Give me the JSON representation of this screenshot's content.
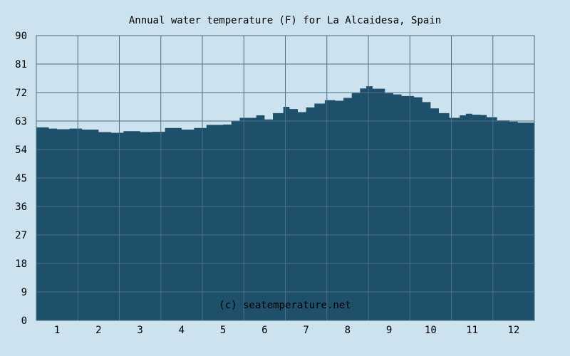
{
  "chart_data": {
    "type": "area",
    "title": "Annual water temperature (F) for La Alcaidesa, Spain",
    "xlabel": "",
    "ylabel": "",
    "x_ticks": [
      "1",
      "2",
      "3",
      "4",
      "5",
      "6",
      "7",
      "8",
      "9",
      "10",
      "11",
      "12"
    ],
    "y_ticks": [
      "0",
      "9",
      "18",
      "27",
      "36",
      "45",
      "54",
      "63",
      "72",
      "81",
      "90"
    ],
    "xlim": [
      0.5,
      12.5
    ],
    "ylim": [
      0,
      90
    ],
    "grid": true,
    "legend": "none",
    "watermark": "(c) seatemperature.net",
    "series": [
      {
        "x": [
          0.5,
          0.8,
          1.0,
          1.3,
          1.6,
          2.0,
          2.3,
          2.6,
          3.0,
          3.3,
          3.6,
          4.0,
          4.3,
          4.6,
          5.0,
          5.2,
          5.4,
          5.8,
          6.0,
          6.2,
          6.45,
          6.6,
          6.8,
          7.0,
          7.2,
          7.45,
          7.7,
          7.9,
          8.1,
          8.3,
          8.45,
          8.6,
          8.9,
          9.1,
          9.3,
          9.6,
          9.8,
          10.0,
          10.2,
          10.45,
          10.7,
          10.85,
          11.0,
          11.2,
          11.35,
          11.6,
          11.9,
          12.1,
          12.5
        ],
        "values": [
          61.0,
          60.6,
          60.4,
          60.6,
          60.3,
          59.5,
          59.3,
          59.8,
          59.5,
          59.6,
          60.8,
          60.3,
          60.8,
          61.8,
          61.9,
          63.0,
          64.0,
          64.8,
          63.5,
          65.5,
          67.5,
          66.8,
          65.8,
          67.3,
          68.5,
          69.6,
          69.4,
          70.3,
          71.8,
          73.3,
          74.0,
          73.2,
          71.8,
          71.4,
          70.9,
          70.5,
          69.0,
          67.0,
          65.5,
          64.0,
          64.8,
          65.3,
          65.0,
          64.9,
          64.2,
          63.2,
          62.8,
          62.5,
          62.5
        ]
      }
    ],
    "colors": {
      "background": "#cce2ee",
      "plot_background": "#cce2ee",
      "area_fill": "#1e4f6b",
      "grid": "#4a7184",
      "text": "#000000"
    }
  }
}
